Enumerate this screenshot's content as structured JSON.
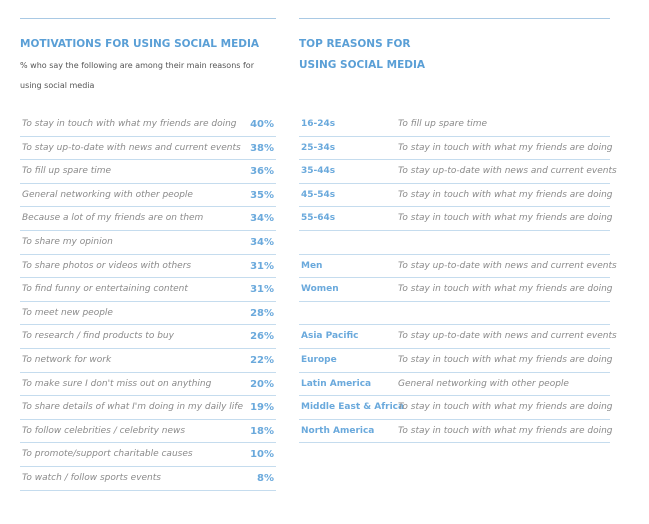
{
  "left": {
    "title": "MOTIVATIONS FOR USING SOCIAL MEDIA",
    "subtitle_lines": [
      "% who say the following are among their main reasons for",
      "using social media"
    ],
    "rows": [
      [
        "To stay in touch with what my friends are doing",
        "40%"
      ],
      [
        "To stay up-to-date with news and current events",
        "38%"
      ],
      [
        "To fill up spare time",
        "36%"
      ],
      [
        "General networking with other people",
        "35%"
      ],
      [
        "Because a lot of my friends are on them",
        "34%"
      ],
      [
        "To share my opinion",
        "34%"
      ],
      [
        "To share photos or videos with others",
        "31%"
      ],
      [
        "To find funny or entertaining content",
        "31%"
      ],
      [
        "To meet new people",
        "28%"
      ],
      [
        "To research / find products to buy",
        "26%"
      ],
      [
        "To network for work",
        "22%"
      ],
      [
        "To make sure I don't miss out on anything",
        "20%"
      ],
      [
        "To share details of what I'm doing in my daily life",
        "19%"
      ],
      [
        "To follow celebrities / celebrity news",
        "18%"
      ],
      [
        "To promote/support charitable causes",
        "10%"
      ],
      [
        "To watch / follow sports events",
        "8%"
      ]
    ]
  },
  "right": {
    "title_lines": [
      "TOP REASONS FOR",
      "USING SOCIAL MEDIA"
    ],
    "groups": [
      [
        [
          "16-24s",
          "To fill up spare time"
        ],
        [
          "25-34s",
          "To stay in touch with what my friends are doing"
        ],
        [
          "35-44s",
          "To stay up-to-date with news and current events"
        ],
        [
          "45-54s",
          "To stay in touch with what my friends are doing"
        ],
        [
          "55-64s",
          "To stay in touch with what my friends are doing"
        ]
      ],
      [
        [
          "Men",
          "To stay up-to-date with news and current events"
        ],
        [
          "Women",
          "To stay in touch with what my friends are doing"
        ]
      ],
      [
        [
          "Asia Pacific",
          "To stay up-to-date with news and current events"
        ],
        [
          "Europe",
          "To stay in touch with what my friends are doing"
        ],
        [
          "Latin America",
          "General networking with other people"
        ],
        [
          "Middle East & Africa",
          "To stay in touch with what my friends are doing"
        ],
        [
          "North America",
          "To stay in touch with what my friends are doing"
        ]
      ]
    ]
  }
}
